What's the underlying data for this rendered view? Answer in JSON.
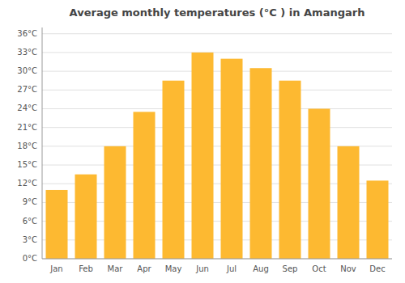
{
  "chart_data": {
    "type": "bar",
    "title": "Average monthly temperatures (°C ) in Amangarh",
    "categories": [
      "Jan",
      "Feb",
      "Mar",
      "Apr",
      "May",
      "Jun",
      "Jul",
      "Aug",
      "Sep",
      "Oct",
      "Nov",
      "Dec"
    ],
    "values": [
      11.0,
      13.5,
      18.0,
      23.5,
      28.5,
      33.0,
      32.0,
      30.5,
      28.5,
      24.0,
      18.0,
      12.5
    ],
    "color": "#FDB931",
    "ylim": [
      0,
      37
    ],
    "yticks": [
      {
        "value": 0,
        "label": "0°C"
      },
      {
        "value": 3,
        "label": "3°C"
      },
      {
        "value": 6,
        "label": "6°C"
      },
      {
        "value": 9,
        "label": "9°C"
      },
      {
        "value": 12,
        "label": "12°C"
      },
      {
        "value": 15,
        "label": "15°C"
      },
      {
        "value": 18,
        "label": "18°C"
      },
      {
        "value": 21,
        "label": "21°C"
      },
      {
        "value": 24,
        "label": "24°C"
      },
      {
        "value": 27,
        "label": "27°C"
      },
      {
        "value": 30,
        "label": "30°C"
      },
      {
        "value": 33,
        "label": "33°C"
      },
      {
        "value": 36,
        "label": "36°C"
      }
    ],
    "grid": true
  }
}
